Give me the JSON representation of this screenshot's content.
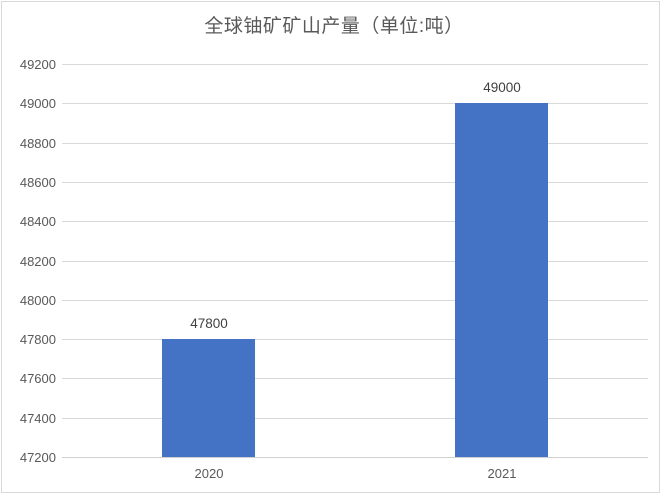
{
  "chart_data": {
    "type": "bar",
    "title": "全球铀矿矿山产量（单位:吨）",
    "categories": [
      "2020",
      "2021"
    ],
    "values": [
      47800,
      49000
    ],
    "data_labels": [
      "47800",
      "49000"
    ],
    "xlabel": "",
    "ylabel": "",
    "ylim": [
      47200,
      49200
    ],
    "ytick_step": 200,
    "ytick_labels": [
      "47200",
      "47400",
      "47600",
      "47800",
      "48000",
      "48200",
      "48400",
      "48600",
      "48800",
      "49000",
      "49200"
    ],
    "grid": true,
    "legend": false,
    "colors": {
      "bar": "#4472c4",
      "gridline": "#d9d9d9",
      "text": "#595959",
      "data_label_text": "#404040",
      "frame_border": "#d9d9d9",
      "background": "#ffffff"
    }
  }
}
